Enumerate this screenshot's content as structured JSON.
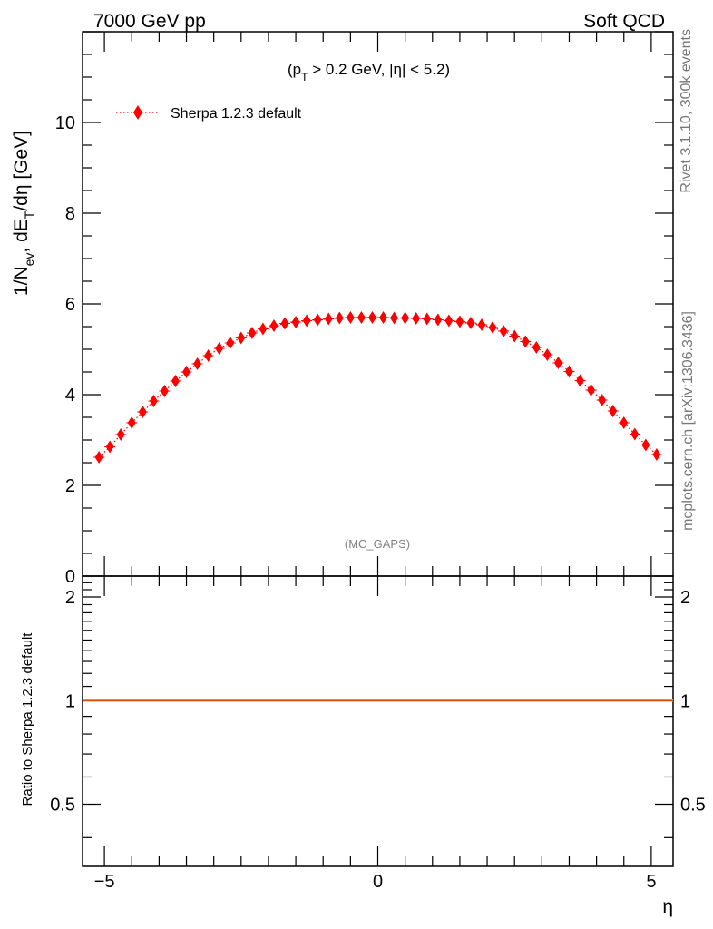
{
  "header": {
    "left": "7000 GeV pp",
    "right": "Soft QCD"
  },
  "side_labels": {
    "top": "Rivet 3.1.10,  300k events",
    "bottom": "mcplots.cern.ch [arXiv:1306.3436]"
  },
  "colors": {
    "series": "#ff0000",
    "ratio_line": "#9acd32",
    "watermark": "#808080"
  },
  "chart_data": [
    {
      "type": "scatter",
      "panel": "main",
      "ylabel": "1/N_ev, dE_T/dη [GeV]",
      "ylabel_parts": {
        "main": "1/N",
        "sub1": "ev",
        "mid": ", dE",
        "sub2": "T",
        "end": "/dη [GeV]"
      },
      "annotation": "(p_T > 0.2 GeV, |η| < 5.2)",
      "annotation_parts": {
        "pre": "(p",
        "sub": "T",
        "post": " > 0.2 GeV, |η| < 5.2)"
      },
      "watermark": "(MC_GAPS)",
      "xlim": [
        -5.4,
        5.4
      ],
      "ylim": [
        0,
        12
      ],
      "yticks": [
        0,
        2,
        4,
        6,
        8,
        10
      ],
      "ytick_labels": [
        "0",
        "2",
        "4",
        "6",
        "8",
        "10"
      ],
      "legend": "top-left",
      "series": [
        {
          "name": "Sherpa 1.2.3 default",
          "marker": "diamond",
          "line": "dotted",
          "x": [
            -5.1,
            -4.9,
            -4.7,
            -4.5,
            -4.3,
            -4.1,
            -3.9,
            -3.7,
            -3.5,
            -3.3,
            -3.1,
            -2.9,
            -2.7,
            -2.5,
            -2.3,
            -2.1,
            -1.9,
            -1.7,
            -1.5,
            -1.3,
            -1.1,
            -0.9,
            -0.7,
            -0.5,
            -0.3,
            -0.1,
            0.1,
            0.3,
            0.5,
            0.7,
            0.9,
            1.1,
            1.3,
            1.5,
            1.7,
            1.9,
            2.1,
            2.3,
            2.5,
            2.7,
            2.9,
            3.1,
            3.3,
            3.5,
            3.7,
            3.9,
            4.1,
            4.3,
            4.5,
            4.7,
            4.9,
            5.1
          ],
          "y": [
            2.62,
            2.85,
            3.12,
            3.38,
            3.62,
            3.86,
            4.08,
            4.3,
            4.5,
            4.68,
            4.86,
            5.02,
            5.14,
            5.25,
            5.36,
            5.45,
            5.52,
            5.57,
            5.6,
            5.63,
            5.65,
            5.67,
            5.69,
            5.7,
            5.7,
            5.7,
            5.7,
            5.69,
            5.69,
            5.68,
            5.67,
            5.65,
            5.63,
            5.61,
            5.58,
            5.54,
            5.48,
            5.4,
            5.29,
            5.17,
            5.04,
            4.88,
            4.7,
            4.51,
            4.31,
            4.1,
            3.88,
            3.64,
            3.38,
            3.13,
            2.89,
            2.68
          ]
        }
      ]
    },
    {
      "type": "line",
      "panel": "ratio",
      "ylabel": "Ratio to Sherpa 1.2.3 default",
      "xlabel": "η",
      "xlim": [
        -5.4,
        5.4
      ],
      "ylim": [
        0.33,
        2.3
      ],
      "scale": "log",
      "yticks": [
        0.5,
        1,
        2
      ],
      "ytick_labels": [
        "0.5",
        "1",
        "2"
      ],
      "xticks": [
        -5,
        0,
        5
      ],
      "xtick_labels": [
        "−5",
        "0",
        "5"
      ],
      "series": [
        {
          "name": "Sherpa 1.2.3 default",
          "x": [
            -5.4,
            5.4
          ],
          "y": [
            1,
            1
          ]
        }
      ]
    }
  ]
}
